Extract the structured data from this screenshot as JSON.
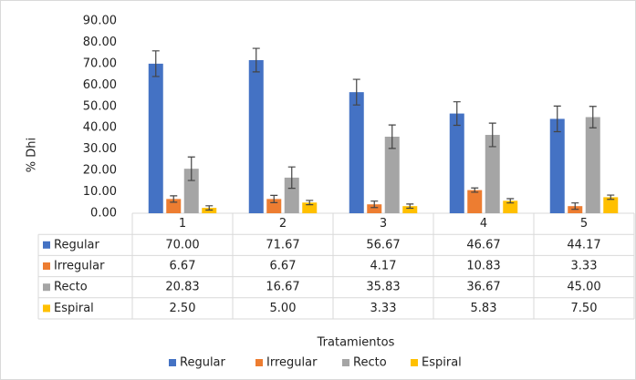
{
  "chart_data": {
    "type": "bar",
    "y_label": "% Dhi",
    "x_label": "Tratamientos",
    "categories": [
      "1",
      "2",
      "3",
      "4",
      "5"
    ],
    "ylim": [
      0,
      90
    ],
    "yticks": [
      {
        "value": 0,
        "label": "0.00"
      },
      {
        "value": 10,
        "label": "10.00"
      },
      {
        "value": 20,
        "label": "20.00"
      },
      {
        "value": 30,
        "label": "30.00"
      },
      {
        "value": 40,
        "label": "40.00"
      },
      {
        "value": 50,
        "label": "50.00"
      },
      {
        "value": 60,
        "label": "60.00"
      },
      {
        "value": 70,
        "label": "70.00"
      },
      {
        "value": 80,
        "label": "80.00"
      },
      {
        "value": 90,
        "label": "90.00"
      }
    ],
    "grid": false,
    "legend": "bottom",
    "series": [
      {
        "name": "Regular",
        "color": "#4472c4",
        "values": [
          70,
          71.67,
          56.67,
          46.67,
          44.17
        ],
        "value_labels": [
          "70.00",
          "71.67",
          "56.67",
          "46.67",
          "44.17"
        ],
        "errors": [
          6,
          5.5,
          6,
          5.5,
          6
        ]
      },
      {
        "name": "Irregular",
        "color": "#ed7d31",
        "values": [
          6.67,
          6.67,
          4.17,
          10.83,
          3.33
        ],
        "value_labels": [
          "6.67",
          "6.67",
          "4.17",
          "10.83",
          "3.33"
        ],
        "errors": [
          1.5,
          1.7,
          1.5,
          1,
          1.5
        ]
      },
      {
        "name": "Recto",
        "color": "#a5a5a5",
        "values": [
          20.83,
          16.67,
          35.83,
          36.67,
          45
        ],
        "value_labels": [
          "20.83",
          "16.67",
          "35.83",
          "36.67",
          "45.00"
        ],
        "errors": [
          5.5,
          5,
          5.5,
          5.5,
          5
        ]
      },
      {
        "name": "Espiral",
        "color": "#ffc000",
        "values": [
          2.5,
          5,
          3.33,
          5.83,
          7.5
        ],
        "value_labels": [
          "2.50",
          "5.00",
          "3.33",
          "5.83",
          "7.50"
        ],
        "errors": [
          1,
          1,
          1,
          1,
          1
        ]
      }
    ]
  }
}
